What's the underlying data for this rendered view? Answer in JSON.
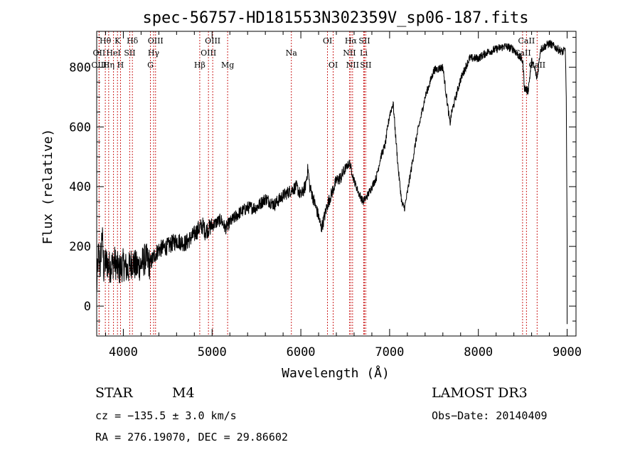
{
  "chart_data": {
    "type": "line",
    "title": "spec-56757-HD181553N302359V_sp06-187.fits",
    "xlabel": "Wavelength (Å)",
    "ylabel": "Flux (relative)",
    "xlim": [
      3700,
      9100
    ],
    "ylim": [
      -100,
      920
    ],
    "x_ticks": [
      4000,
      5000,
      6000,
      7000,
      8000,
      9000
    ],
    "y_ticks": [
      0,
      200,
      400,
      600,
      800
    ],
    "series": [
      {
        "name": "flux",
        "anchors": [
          [
            3700,
            60
          ],
          [
            3720,
            180
          ],
          [
            3740,
            130
          ],
          [
            3760,
            250
          ],
          [
            3780,
            120
          ],
          [
            3800,
            150
          ],
          [
            3850,
            130
          ],
          [
            3900,
            150
          ],
          [
            3950,
            120
          ],
          [
            4000,
            140
          ],
          [
            4050,
            120
          ],
          [
            4100,
            150
          ],
          [
            4150,
            130
          ],
          [
            4200,
            140
          ],
          [
            4250,
            160
          ],
          [
            4300,
            140
          ],
          [
            4350,
            170
          ],
          [
            4400,
            190
          ],
          [
            4500,
            200
          ],
          [
            4600,
            220
          ],
          [
            4700,
            210
          ],
          [
            4800,
            240
          ],
          [
            4850,
            260
          ],
          [
            4900,
            270
          ],
          [
            4920,
            250
          ],
          [
            5000,
            270
          ],
          [
            5100,
            290
          ],
          [
            5150,
            260
          ],
          [
            5200,
            280
          ],
          [
            5300,
            310
          ],
          [
            5400,
            330
          ],
          [
            5500,
            330
          ],
          [
            5600,
            360
          ],
          [
            5700,
            340
          ],
          [
            5800,
            370
          ],
          [
            5900,
            390
          ],
          [
            5950,
            400
          ],
          [
            6000,
            370
          ],
          [
            6050,
            400
          ],
          [
            6080,
            460
          ],
          [
            6100,
            400
          ],
          [
            6150,
            350
          ],
          [
            6200,
            300
          ],
          [
            6230,
            260
          ],
          [
            6250,
            280
          ],
          [
            6300,
            340
          ],
          [
            6350,
            380
          ],
          [
            6400,
            420
          ],
          [
            6450,
            430
          ],
          [
            6500,
            460
          ],
          [
            6550,
            480
          ],
          [
            6600,
            420
          ],
          [
            6650,
            380
          ],
          [
            6700,
            350
          ],
          [
            6750,
            370
          ],
          [
            6800,
            400
          ],
          [
            6850,
            430
          ],
          [
            6900,
            500
          ],
          [
            6950,
            540
          ],
          [
            7000,
            640
          ],
          [
            7040,
            680
          ],
          [
            7060,
            600
          ],
          [
            7100,
            450
          ],
          [
            7140,
            340
          ],
          [
            7170,
            330
          ],
          [
            7200,
            380
          ],
          [
            7250,
            470
          ],
          [
            7300,
            560
          ],
          [
            7400,
            700
          ],
          [
            7500,
            790
          ],
          [
            7600,
            800
          ],
          [
            7650,
            680
          ],
          [
            7680,
            610
          ],
          [
            7700,
            650
          ],
          [
            7800,
            760
          ],
          [
            7900,
            830
          ],
          [
            8000,
            830
          ],
          [
            8100,
            850
          ],
          [
            8200,
            860
          ],
          [
            8300,
            870
          ],
          [
            8400,
            860
          ],
          [
            8450,
            840
          ],
          [
            8500,
            820
          ],
          [
            8520,
            730
          ],
          [
            8560,
            720
          ],
          [
            8600,
            820
          ],
          [
            8640,
            790
          ],
          [
            8660,
            760
          ],
          [
            8700,
            860
          ],
          [
            8800,
            880
          ],
          [
            8900,
            860
          ],
          [
            8950,
            850
          ],
          [
            8980,
            860
          ],
          [
            8990,
            700
          ],
          [
            9000,
            220
          ]
        ]
      }
    ],
    "spectral_lines": [
      {
        "label": "Hθ",
        "x": 3797,
        "row": 1
      },
      {
        "label": "OII",
        "x": 3727,
        "row": 2
      },
      {
        "label": "OIII",
        "x": 3727,
        "row": 3
      },
      {
        "label": "K",
        "x": 3934,
        "row": 1
      },
      {
        "label": "HeI",
        "x": 3889,
        "row": 2
      },
      {
        "label": "Hη",
        "x": 3835,
        "row": 3
      },
      {
        "label": "H",
        "x": 3968,
        "row": 3
      },
      {
        "label": "Hδ",
        "x": 4102,
        "row": 1
      },
      {
        "label": "SII",
        "x": 4072,
        "row": 2
      },
      {
        "label": "OIII",
        "x": 4363,
        "row": 1
      },
      {
        "label": "Hγ",
        "x": 4341,
        "row": 2
      },
      {
        "label": "G",
        "x": 4305,
        "row": 3
      },
      {
        "label": "OIII",
        "x": 5007,
        "row": 1
      },
      {
        "label": "OIII",
        "x": 4959,
        "row": 2
      },
      {
        "label": "Hβ",
        "x": 4861,
        "row": 3
      },
      {
        "label": "Mg",
        "x": 5175,
        "row": 3
      },
      {
        "label": "Na",
        "x": 5893,
        "row": 2
      },
      {
        "label": "OI",
        "x": 6300,
        "row": 1
      },
      {
        "label": "OI",
        "x": 6364,
        "row": 3
      },
      {
        "label": "Hα",
        "x": 6563,
        "row": 1
      },
      {
        "label": "SII",
        "x": 6716,
        "row": 1
      },
      {
        "label": "NII",
        "x": 6548,
        "row": 2
      },
      {
        "label": "Li",
        "x": 6708,
        "row": 2
      },
      {
        "label": "NII",
        "x": 6583,
        "row": 3
      },
      {
        "label": "SII",
        "x": 6731,
        "row": 3
      },
      {
        "label": "CaII",
        "x": 8542,
        "row": 1
      },
      {
        "label": "CaII",
        "x": 8498,
        "row": 2
      },
      {
        "label": "CaII",
        "x": 8662,
        "row": 3
      }
    ],
    "line_color": "#000000",
    "marker_color": "#cc2222"
  },
  "footer": {
    "object_type": "STAR",
    "subclass": "M4",
    "survey": "LAMOST DR3",
    "cz": "cz = −135.5 ± 3.0 km/s",
    "obs_date": "Obs−Date: 20140409",
    "coords": "RA = 276.19070, DEC =  29.86602"
  }
}
